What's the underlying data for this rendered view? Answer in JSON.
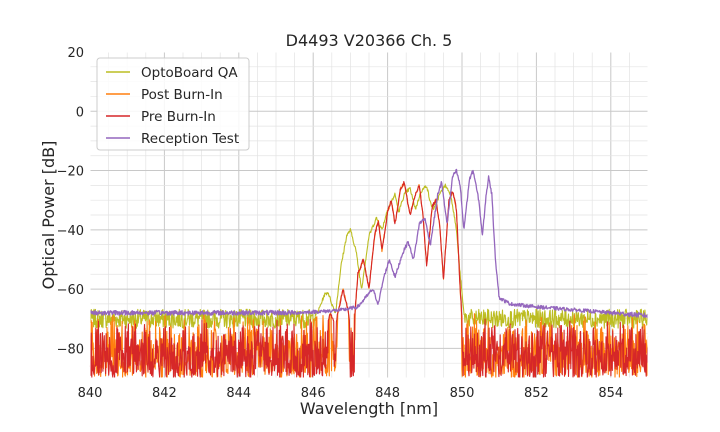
{
  "chart_data": {
    "type": "line",
    "title": "D4493 V20366 Ch. 5",
    "xlabel": "Wavelength [nm]",
    "ylabel": "Optical Power [dB]",
    "xlim": [
      840,
      855
    ],
    "ylim": [
      -90,
      20
    ],
    "xticks": [
      840,
      842,
      844,
      846,
      848,
      850,
      852,
      854
    ],
    "yticks": [
      20,
      0,
      -20,
      -40,
      -60,
      -80
    ],
    "xtick_labels": [
      "840",
      "842",
      "844",
      "846",
      "848",
      "850",
      "852",
      "854"
    ],
    "ytick_labels": [
      "20",
      "0",
      "−20",
      "−40",
      "−60",
      "−80"
    ],
    "grid": true,
    "legend_position": "top-left",
    "series": [
      {
        "name": "OptoBoard QA",
        "color": "#bcbd22",
        "noise_floor": [
          -72,
          -68
        ],
        "points": [
          [
            840.0,
            -70
          ],
          [
            846.0,
            -70
          ],
          [
            846.15,
            -67
          ],
          [
            846.3,
            -62
          ],
          [
            846.4,
            -61
          ],
          [
            846.5,
            -65
          ],
          [
            846.6,
            -68
          ],
          [
            846.75,
            -52
          ],
          [
            846.9,
            -42
          ],
          [
            847.0,
            -40
          ],
          [
            847.15,
            -47
          ],
          [
            847.3,
            -60
          ],
          [
            847.5,
            -42
          ],
          [
            847.7,
            -36
          ],
          [
            847.85,
            -40
          ],
          [
            848.0,
            -33
          ],
          [
            848.12,
            -30
          ],
          [
            848.2,
            -28
          ],
          [
            848.3,
            -34
          ],
          [
            848.45,
            -28
          ],
          [
            848.6,
            -26
          ],
          [
            848.75,
            -33
          ],
          [
            848.9,
            -27
          ],
          [
            849.05,
            -25
          ],
          [
            849.15,
            -31
          ],
          [
            849.25,
            -33
          ],
          [
            849.4,
            -28
          ],
          [
            849.55,
            -25
          ],
          [
            849.7,
            -28
          ],
          [
            849.85,
            -40
          ],
          [
            849.95,
            -55
          ],
          [
            850.05,
            -68
          ],
          [
            850.1,
            -70
          ],
          [
            855.0,
            -70
          ]
        ]
      },
      {
        "name": "Post Burn-In",
        "color": "#ff7f0e",
        "noise_floor": [
          -90,
          -68
        ],
        "points": [
          [
            840.0,
            -78
          ],
          [
            846.3,
            -78
          ],
          [
            846.45,
            -68
          ],
          [
            846.6,
            -72
          ],
          [
            846.8,
            -60
          ],
          [
            846.95,
            -68
          ],
          [
            847.05,
            -82
          ],
          [
            847.2,
            -55
          ],
          [
            847.35,
            -50
          ],
          [
            847.5,
            -60
          ],
          [
            847.65,
            -42
          ],
          [
            847.75,
            -37
          ],
          [
            847.85,
            -47
          ],
          [
            848.0,
            -34
          ],
          [
            848.1,
            -30
          ],
          [
            848.2,
            -38
          ],
          [
            848.35,
            -26
          ],
          [
            848.45,
            -24
          ],
          [
            848.6,
            -35
          ],
          [
            848.75,
            -28
          ],
          [
            848.85,
            -25
          ],
          [
            848.95,
            -35
          ],
          [
            849.05,
            -52
          ],
          [
            849.2,
            -32
          ],
          [
            849.3,
            -30
          ],
          [
            849.4,
            -38
          ],
          [
            849.5,
            -57
          ],
          [
            849.65,
            -30
          ],
          [
            849.75,
            -27
          ],
          [
            849.85,
            -33
          ],
          [
            849.95,
            -60
          ],
          [
            850.05,
            -80
          ],
          [
            850.15,
            -78
          ],
          [
            855.0,
            -78
          ]
        ]
      },
      {
        "name": "Pre Burn-In",
        "color": "#d62728",
        "noise_floor": [
          -90,
          -70
        ],
        "points": [
          [
            840.0,
            -78
          ],
          [
            846.3,
            -78
          ],
          [
            846.45,
            -68
          ],
          [
            846.6,
            -72
          ],
          [
            846.8,
            -60
          ],
          [
            846.95,
            -68
          ],
          [
            847.05,
            -80
          ],
          [
            847.2,
            -55
          ],
          [
            847.35,
            -50
          ],
          [
            847.5,
            -60
          ],
          [
            847.65,
            -42
          ],
          [
            847.75,
            -37
          ],
          [
            847.85,
            -47
          ],
          [
            848.0,
            -34
          ],
          [
            848.1,
            -30
          ],
          [
            848.2,
            -38
          ],
          [
            848.35,
            -26
          ],
          [
            848.45,
            -24
          ],
          [
            848.6,
            -35
          ],
          [
            848.75,
            -28
          ],
          [
            848.85,
            -25
          ],
          [
            848.95,
            -35
          ],
          [
            849.05,
            -52
          ],
          [
            849.2,
            -32
          ],
          [
            849.3,
            -30
          ],
          [
            849.4,
            -38
          ],
          [
            849.5,
            -57
          ],
          [
            849.65,
            -30
          ],
          [
            849.75,
            -27
          ],
          [
            849.85,
            -33
          ],
          [
            849.95,
            -60
          ],
          [
            850.05,
            -80
          ],
          [
            850.15,
            -78
          ],
          [
            855.0,
            -78
          ]
        ]
      },
      {
        "name": "Reception Test",
        "color": "#9467bd",
        "noise_floor": [
          -68,
          -67
        ],
        "points": [
          [
            840.0,
            -68
          ],
          [
            845.5,
            -68
          ],
          [
            846.3,
            -67.5
          ],
          [
            846.8,
            -67
          ],
          [
            847.2,
            -66
          ],
          [
            847.4,
            -63
          ],
          [
            847.6,
            -60
          ],
          [
            847.75,
            -65
          ],
          [
            847.9,
            -56
          ],
          [
            848.05,
            -50
          ],
          [
            848.2,
            -56
          ],
          [
            848.4,
            -48
          ],
          [
            848.55,
            -44
          ],
          [
            848.7,
            -50
          ],
          [
            848.85,
            -38
          ],
          [
            849.0,
            -36
          ],
          [
            849.15,
            -45
          ],
          [
            849.35,
            -28
          ],
          [
            849.45,
            -24
          ],
          [
            849.6,
            -38
          ],
          [
            849.75,
            -22
          ],
          [
            849.85,
            -20
          ],
          [
            849.95,
            -25
          ],
          [
            850.05,
            -40
          ],
          [
            850.2,
            -23
          ],
          [
            850.3,
            -20
          ],
          [
            850.45,
            -30
          ],
          [
            850.55,
            -42
          ],
          [
            850.65,
            -28
          ],
          [
            850.72,
            -22
          ],
          [
            850.8,
            -28
          ],
          [
            850.9,
            -50
          ],
          [
            851.0,
            -63
          ],
          [
            851.3,
            -65
          ],
          [
            852.0,
            -66
          ],
          [
            853.0,
            -67
          ],
          [
            854.0,
            -68
          ],
          [
            855.0,
            -69
          ]
        ]
      }
    ]
  }
}
